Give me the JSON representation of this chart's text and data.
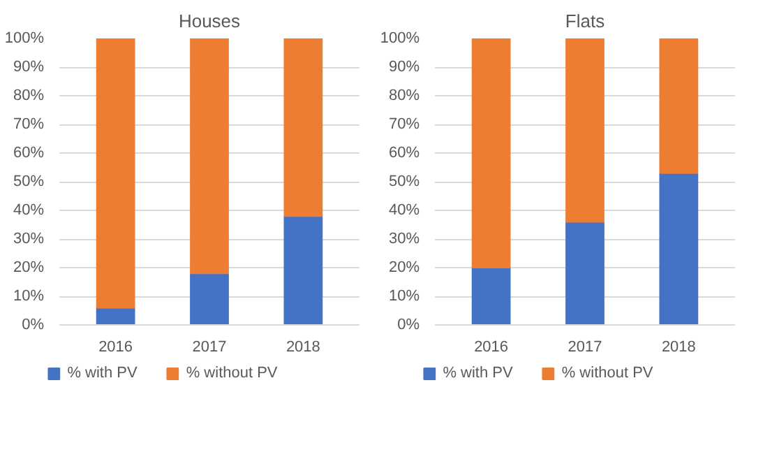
{
  "chart_data": [
    {
      "type": "bar",
      "title": "Houses",
      "categories": [
        "2016",
        "2017",
        "2018"
      ],
      "stacked": true,
      "ylim": [
        0,
        100
      ],
      "yticks": [
        {
          "value": 0,
          "label": "0%"
        },
        {
          "value": 10,
          "label": "10%"
        },
        {
          "value": 20,
          "label": "20%"
        },
        {
          "value": 30,
          "label": "30%"
        },
        {
          "value": 40,
          "label": "40%"
        },
        {
          "value": 50,
          "label": "50%"
        },
        {
          "value": 60,
          "label": "60%"
        },
        {
          "value": 70,
          "label": "70%"
        },
        {
          "value": 80,
          "label": "80%"
        },
        {
          "value": 90,
          "label": "90%"
        },
        {
          "value": 100,
          "label": "100%"
        }
      ],
      "grid": "y",
      "legend": "bottom",
      "series": [
        {
          "name": "% with PV",
          "color": "#4472c4",
          "values": [
            6,
            18,
            38
          ]
        },
        {
          "name": "% without PV",
          "color": "#ed7d31",
          "values": [
            94,
            82,
            62
          ]
        }
      ]
    },
    {
      "type": "bar",
      "title": "Flats",
      "categories": [
        "2016",
        "2017",
        "2018"
      ],
      "stacked": true,
      "ylim": [
        0,
        100
      ],
      "yticks": [
        {
          "value": 0,
          "label": "0%"
        },
        {
          "value": 10,
          "label": "10%"
        },
        {
          "value": 20,
          "label": "20%"
        },
        {
          "value": 30,
          "label": "30%"
        },
        {
          "value": 40,
          "label": "40%"
        },
        {
          "value": 50,
          "label": "50%"
        },
        {
          "value": 60,
          "label": "60%"
        },
        {
          "value": 70,
          "label": "70%"
        },
        {
          "value": 80,
          "label": "80%"
        },
        {
          "value": 90,
          "label": "90%"
        },
        {
          "value": 100,
          "label": "100%"
        }
      ],
      "grid": "y",
      "legend": "bottom",
      "series": [
        {
          "name": "% with PV",
          "color": "#4472c4",
          "values": [
            20,
            36,
            53
          ]
        },
        {
          "name": "% without PV",
          "color": "#ed7d31",
          "values": [
            80,
            64,
            47
          ]
        }
      ]
    }
  ]
}
